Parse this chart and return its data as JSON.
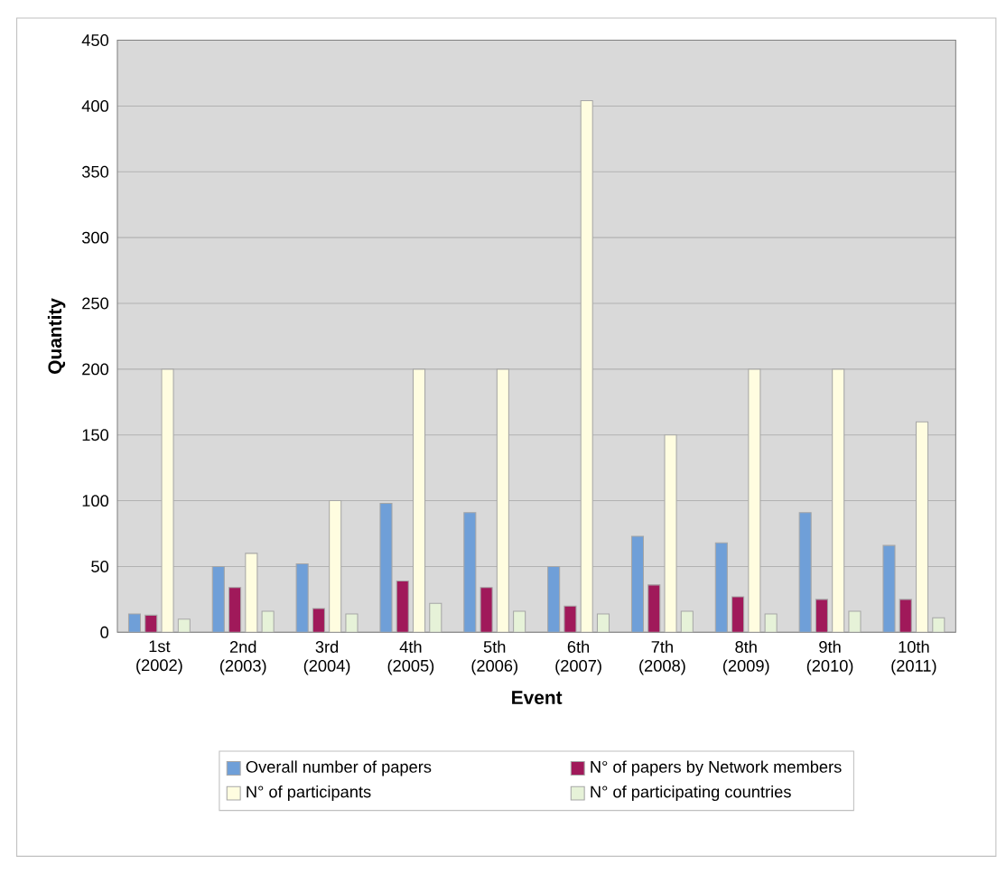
{
  "chart_data": {
    "type": "bar",
    "xlabel": "Event",
    "ylabel": "Quantity",
    "categories": [
      "1st (2002)",
      "2nd (2003)",
      "3rd (2004)",
      "4th (2005)",
      "5th (2006)",
      "6th (2007)",
      "7th (2008)",
      "8th (2009)",
      "9th (2010)",
      "10th (2011)"
    ],
    "series": [
      {
        "name": "Overall number of papers",
        "color": "#6f9fd8",
        "values": [
          14,
          50,
          52,
          98,
          91,
          50,
          73,
          68,
          91,
          66
        ]
      },
      {
        "name": "N° of papers by Network members",
        "color": "#a0195a",
        "values": [
          13,
          34,
          18,
          39,
          34,
          20,
          36,
          27,
          25,
          25
        ]
      },
      {
        "name": "N° of participants",
        "color": "#fffde0",
        "values": [
          200,
          60,
          100,
          200,
          200,
          404,
          150,
          200,
          200,
          160
        ]
      },
      {
        "name": "N° of participating countries",
        "color": "#e6f2d8",
        "values": [
          10,
          16,
          14,
          22,
          16,
          14,
          16,
          14,
          16,
          11
        ]
      }
    ],
    "ylim": [
      0,
      450
    ],
    "yticks": [
      0,
      50,
      100,
      150,
      200,
      250,
      300,
      350,
      400,
      450
    ],
    "grid": "y",
    "legend": "bottom"
  }
}
